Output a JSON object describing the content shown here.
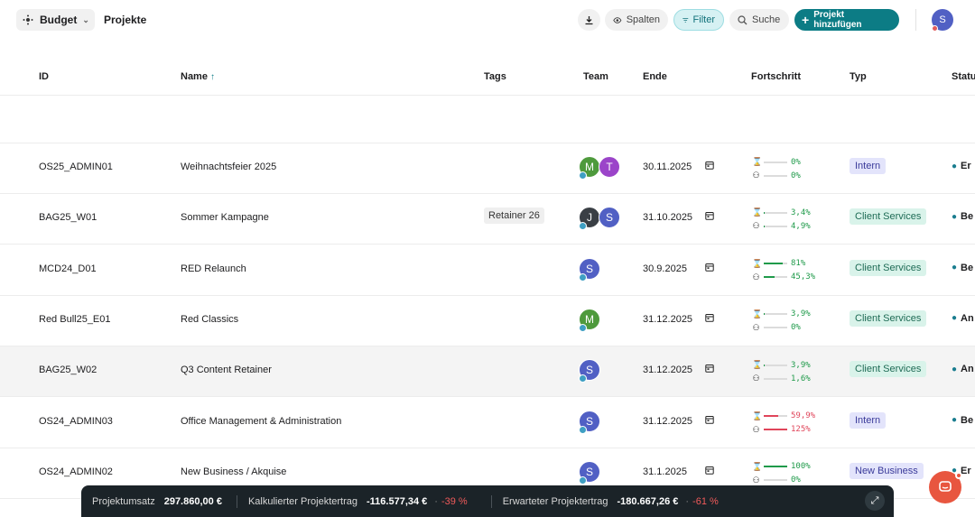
{
  "topbar": {
    "app_name": "Budget",
    "page_title": "Projekte",
    "download_icon": "download-icon",
    "columns_label": "Spalten",
    "filter_label": "Filter",
    "search_label": "Suche",
    "add_label": "Projekt hinzufügen",
    "user_initial": "S"
  },
  "columns": {
    "id": "ID",
    "name": "Name",
    "tags": "Tags",
    "team": "Team",
    "end": "Ende",
    "progress": "Fortschritt",
    "type": "Typ",
    "status": "Statu"
  },
  "rows": [
    {
      "id": "OS25_ADMIN01",
      "name": "Weihnachtsfeier 2025",
      "tag": "",
      "team": [
        {
          "i": "M",
          "color": "#4e9a3c"
        },
        {
          "i": "T",
          "color": "#9b44c9"
        }
      ],
      "end": "30.11.2025",
      "time": "0%",
      "time_fraction": 0,
      "time_color": "#1f9a4a",
      "budget": "0%",
      "budget_fraction": 0,
      "budget_color": "#1f9a4a",
      "type": "Intern",
      "type_class": "intern",
      "status": "Er"
    },
    {
      "id": "BAG25_W01",
      "name": "Sommer Kampagne",
      "tag": "Retainer 26",
      "team": [
        {
          "i": "J",
          "color": "#3a3f45"
        },
        {
          "i": "S",
          "color": "#5160c4"
        }
      ],
      "end": "31.10.2025",
      "time": "3,4%",
      "time_fraction": 0.034,
      "time_color": "#1f9a4a",
      "budget": "4,9%",
      "budget_fraction": 0.049,
      "budget_color": "#1f9a4a",
      "type": "Client Services",
      "type_class": "client",
      "status": "Be"
    },
    {
      "id": "MCD24_D01",
      "name": "RED Relaunch",
      "tag": "",
      "team": [
        {
          "i": "S",
          "color": "#5160c4"
        }
      ],
      "end": "30.9.2025",
      "time": "81%",
      "time_fraction": 0.81,
      "time_color": "#1f9a4a",
      "budget": "45,3%",
      "budget_fraction": 0.453,
      "budget_color": "#1f9a4a",
      "type": "Client Services",
      "type_class": "client",
      "status": "Be"
    },
    {
      "id": "Red Bull25_E01",
      "name": "Red Classics",
      "tag": "",
      "team": [
        {
          "i": "M",
          "color": "#4e9a3c"
        }
      ],
      "end": "31.12.2025",
      "time": "3,9%",
      "time_fraction": 0.039,
      "time_color": "#1f9a4a",
      "budget": "0%",
      "budget_fraction": 0,
      "budget_color": "#1f9a4a",
      "type": "Client Services",
      "type_class": "client",
      "status": "An"
    },
    {
      "id": "BAG25_W02",
      "name": "Q3 Content Retainer",
      "tag": "",
      "team": [
        {
          "i": "S",
          "color": "#5160c4"
        }
      ],
      "end": "31.12.2025",
      "time": "3,9%",
      "time_fraction": 0.039,
      "time_color": "#1f9a4a",
      "budget": "1,6%",
      "budget_fraction": 0.016,
      "budget_color": "#1f9a4a",
      "type": "Client Services",
      "type_class": "client",
      "status": "An"
    },
    {
      "id": "OS24_ADMIN03",
      "name": "Office Management & Administration",
      "tag": "",
      "team": [
        {
          "i": "S",
          "color": "#5160c4"
        }
      ],
      "end": "31.12.2025",
      "time": "59,9%",
      "time_fraction": 0.599,
      "time_color": "#e0455a",
      "budget": "125%",
      "budget_fraction": 1,
      "budget_color": "#e0455a",
      "type": "Intern",
      "type_class": "intern",
      "status": "Be"
    },
    {
      "id": "OS24_ADMIN02",
      "name": "New Business / Akquise",
      "tag": "",
      "team": [
        {
          "i": "S",
          "color": "#5160c4"
        }
      ],
      "end": "31.1.2025",
      "time": "100%",
      "time_fraction": 1,
      "time_color": "#1f9a4a",
      "budget": "0%",
      "budget_fraction": 0,
      "budget_color": "#1f9a4a",
      "type": "New Business",
      "type_class": "nb",
      "status": "Er"
    }
  ],
  "summary": {
    "revenue_label": "Projektumsatz",
    "revenue_value": "297.860,00 €",
    "calc_label": "Kalkulierter Projektertrag",
    "calc_value": "-116.577,34 €",
    "calc_pct": "-39 %",
    "expected_label": "Erwarteter Projektertrag",
    "expected_value": "-180.667,26 €",
    "expected_pct": "-61 %"
  },
  "colors": {
    "accent": "#0c7c85",
    "negative": "#f05a5a",
    "positive": "#1f9a4a"
  }
}
